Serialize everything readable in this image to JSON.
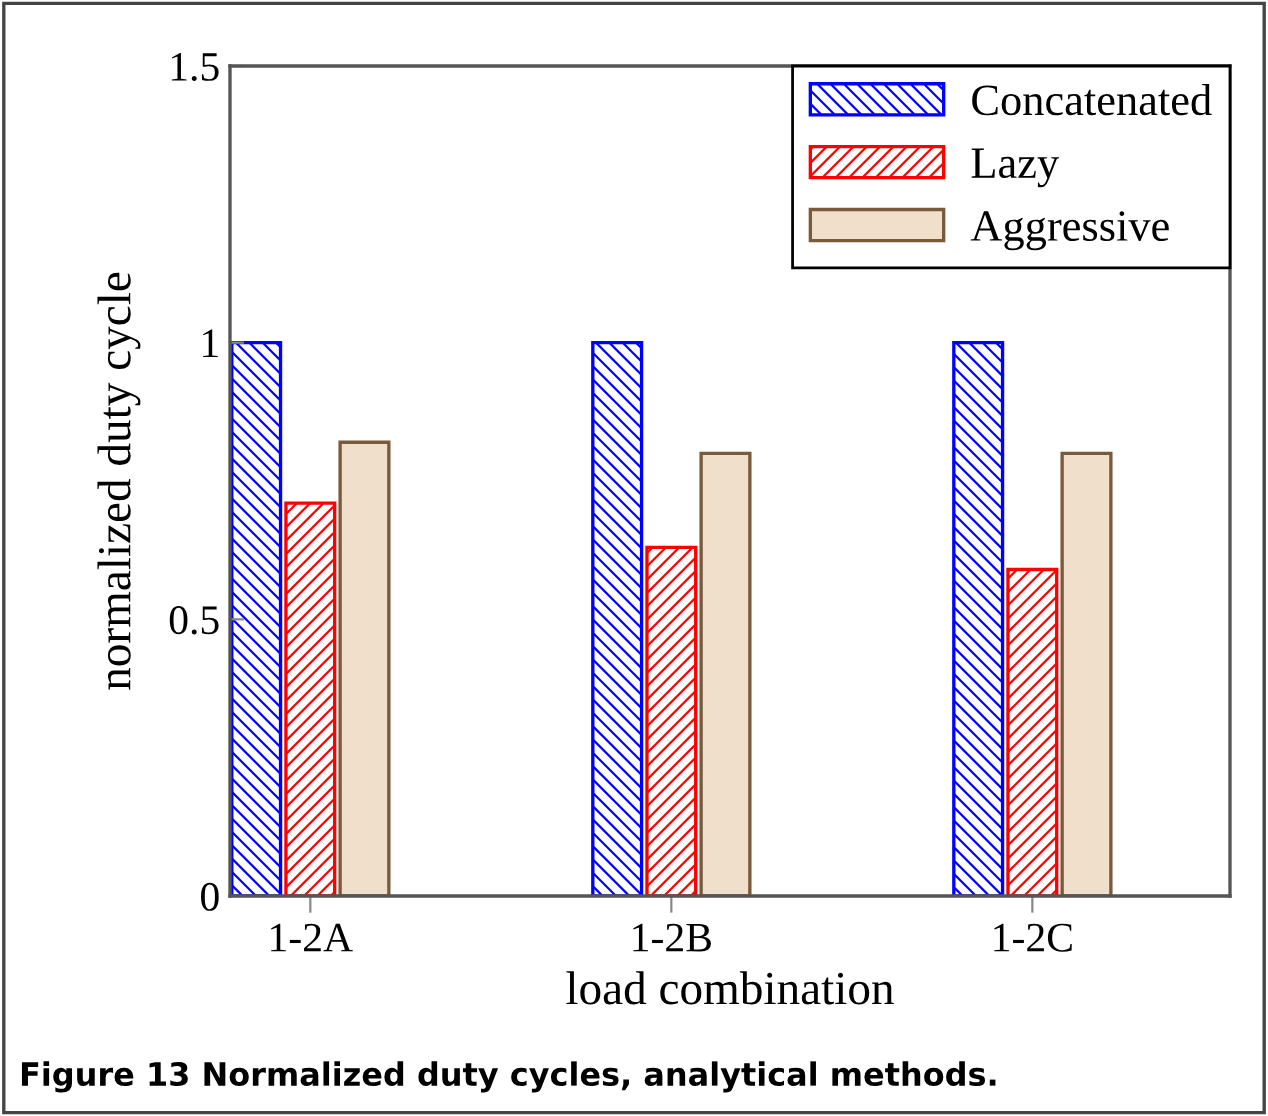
{
  "chart_data": {
    "type": "bar",
    "xlabel": "load combination",
    "ylabel": "normalized duty cycle",
    "categories": [
      "1-2A",
      "1-2B",
      "1-2C"
    ],
    "series": [
      {
        "name": "Concatenated",
        "color": "#0000ff",
        "values": [
          1,
          1,
          1
        ]
      },
      {
        "name": "Lazy",
        "color": "#ff0000",
        "values": [
          0.71,
          0.63,
          0.59
        ]
      },
      {
        "name": "Aggressive",
        "color": "#f0dfcb",
        "values": [
          0.82,
          0.8,
          0.8
        ]
      }
    ],
    "ylim": [
      0,
      1.5
    ],
    "yticks": [
      0,
      0.5,
      1,
      1.5
    ],
    "legend": "top right",
    "grid": false,
    "annotations": [
      "Figure 13 Normalized duty cycles, analytical methods."
    ]
  }
}
